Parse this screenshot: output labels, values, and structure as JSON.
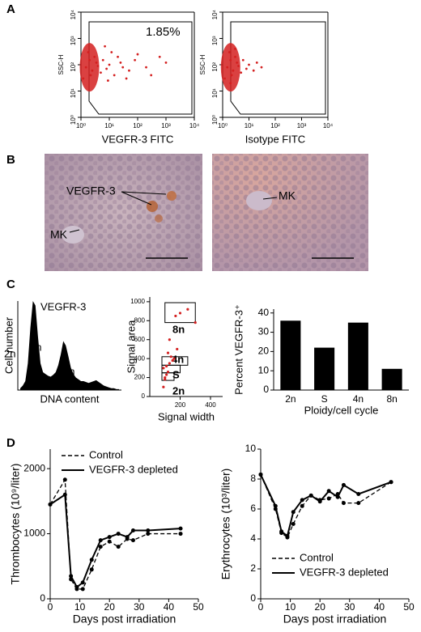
{
  "panel_labels": [
    "A",
    "B",
    "C",
    "D"
  ],
  "micrographs": {
    "labels": [
      "VEGFR-3",
      "MK",
      "MK"
    ]
  },
  "chart_data": [
    {
      "type": "flow",
      "xlabel": "VEGFR-3 FITC",
      "ylabel": "SSC-H",
      "annotations": [
        "1.85%"
      ],
      "color": "#d42020",
      "log": true,
      "xlim": [
        1,
        10000
      ],
      "ylim": [
        1,
        10000
      ],
      "xticks": [
        {
          "value": 1,
          "label": "10⁰"
        },
        {
          "value": 10,
          "label": "10¹"
        },
        {
          "value": 100,
          "label": "10²"
        },
        {
          "value": 1000,
          "label": "10³"
        },
        {
          "value": 10000,
          "label": "10⁴"
        }
      ],
      "yticks": [
        {
          "value": 1,
          "label": "10⁰"
        },
        {
          "value": 10,
          "label": "10¹"
        },
        {
          "value": 100,
          "label": "10²"
        },
        {
          "value": 1000,
          "label": "10³"
        },
        {
          "value": 10000,
          "label": "10⁴"
        }
      ],
      "x": [
        1.2,
        1.5,
        2,
        2.5,
        3,
        1.8,
        2.2,
        3.5,
        4,
        5,
        6,
        8,
        10,
        15,
        20,
        30,
        12,
        25,
        50,
        80,
        100,
        200,
        300,
        600,
        1000,
        40,
        7,
        9
      ],
      "y": [
        30,
        80,
        150,
        60,
        200,
        300,
        40,
        120,
        90,
        50,
        150,
        70,
        100,
        40,
        200,
        80,
        300,
        120,
        60,
        150,
        250,
        80,
        40,
        200,
        120,
        30,
        500,
        25
      ]
    },
    {
      "type": "flow",
      "xlabel": "Isotype FITC",
      "ylabel": "SSC-H",
      "annotations": [],
      "color": "#d42020",
      "log": true,
      "xlim": [
        1,
        10000
      ],
      "ylim": [
        1,
        10000
      ],
      "xticks": [
        {
          "value": 1,
          "label": "10⁰"
        },
        {
          "value": 10,
          "label": "10¹"
        },
        {
          "value": 100,
          "label": "10²"
        },
        {
          "value": 1000,
          "label": "10³"
        },
        {
          "value": 10000,
          "label": "10⁴"
        }
      ],
      "yticks": [
        {
          "value": 1,
          "label": "10⁰"
        },
        {
          "value": 10,
          "label": "10¹"
        },
        {
          "value": 100,
          "label": "10²"
        },
        {
          "value": 1000,
          "label": "10³"
        },
        {
          "value": 10000,
          "label": "10⁴"
        }
      ],
      "x": [
        1.2,
        1.5,
        2,
        2.5,
        3,
        1.8,
        2.2,
        3.5,
        4,
        5,
        6,
        8,
        10,
        15,
        20,
        3,
        2,
        30
      ],
      "y": [
        30,
        80,
        150,
        60,
        200,
        300,
        40,
        120,
        90,
        50,
        150,
        70,
        100,
        60,
        120,
        400,
        20,
        80
      ]
    },
    {
      "type": "histogram",
      "xlabel": "DNA content",
      "ylabel": "Cell number",
      "annotations": [
        "VEGFR-3",
        "2n",
        "4n",
        "8n"
      ],
      "color": "#000000",
      "values": [
        2,
        5,
        10,
        30,
        70,
        100,
        95,
        60,
        30,
        20,
        18,
        16,
        15,
        17,
        20,
        28,
        40,
        55,
        50,
        38,
        25,
        18,
        14,
        12,
        10,
        10,
        9,
        8,
        9,
        10,
        11,
        9,
        7,
        5,
        4,
        3,
        2,
        2,
        1,
        1
      ]
    },
    {
      "type": "scatter",
      "xlabel": "Signal width",
      "ylabel": "Signal area",
      "annotations": [
        "8n",
        "4n",
        "S",
        "2n"
      ],
      "color": "#d42020",
      "xlim": [
        0,
        480
      ],
      "ylim": [
        0,
        1050
      ],
      "xticks": [
        200,
        400
      ],
      "yticks": [
        0,
        200,
        400,
        600,
        800,
        1000
      ],
      "x": [
        100,
        110,
        120,
        90,
        130,
        150,
        140,
        160,
        120,
        110,
        100,
        170,
        200,
        250,
        300,
        180,
        90,
        130
      ],
      "y": [
        200,
        230,
        260,
        300,
        350,
        380,
        420,
        400,
        460,
        320,
        180,
        850,
        880,
        920,
        780,
        500,
        100,
        600
      ]
    },
    {
      "type": "bar",
      "xlabel": "Ploidy/cell cycle",
      "ylabel": "Percent VEGFR-3⁺",
      "annotations": [],
      "color": "#000000",
      "categories": [
        "2n",
        "S",
        "4n",
        "8n"
      ],
      "values": [
        36,
        22,
        35,
        11
      ],
      "ylim": [
        0,
        42
      ],
      "yticks": [
        0,
        10,
        20,
        30,
        40
      ]
    },
    {
      "type": "line",
      "xlabel": "Days post irradiation",
      "ylabel": "Thrombocytes (10⁹/liter)",
      "annotations": [],
      "legend": "upper",
      "xlim": [
        0,
        50
      ],
      "ylim": [
        0,
        2300
      ],
      "xticks": [
        0,
        10,
        20,
        30,
        40,
        50
      ],
      "yticks": [
        0,
        1000,
        2000
      ],
      "x": [
        0,
        5,
        7,
        9,
        11,
        14,
        17,
        20,
        23,
        26,
        28,
        33,
        44
      ],
      "series": [
        {
          "name": "Control",
          "color": "#000000",
          "dash": true,
          "values": [
            1450,
            1830,
            300,
            150,
            150,
            450,
            800,
            880,
            800,
            920,
            900,
            1000,
            1000
          ]
        },
        {
          "name": "VEGFR-3 depleted",
          "color": "#000000",
          "dash": false,
          "values": [
            1450,
            1600,
            350,
            180,
            250,
            600,
            900,
            950,
            1000,
            950,
            1050,
            1050,
            1080
          ]
        }
      ]
    },
    {
      "type": "line",
      "xlabel": "Days post irradiation",
      "ylabel": "Erythrocytes (10³/liter)",
      "annotations": [],
      "legend": "lower",
      "xlim": [
        0,
        50
      ],
      "ylim": [
        0,
        10
      ],
      "xticks": [
        0,
        10,
        20,
        30,
        40,
        50
      ],
      "yticks": [
        0,
        2,
        4,
        6,
        8,
        10
      ],
      "x": [
        0,
        5,
        7,
        9,
        11,
        14,
        17,
        20,
        23,
        26,
        28,
        33,
        44
      ],
      "series": [
        {
          "name": "Control",
          "color": "#000000",
          "dash": true,
          "values": [
            8.3,
            6,
            4.4,
            4.1,
            5,
            6.2,
            6.9,
            6.6,
            6.7,
            7,
            6.4,
            6.4,
            7.8
          ]
        },
        {
          "name": "VEGFR-3 depleted",
          "color": "#000000",
          "dash": false,
          "values": [
            8.3,
            6.2,
            4.5,
            4.2,
            5.8,
            6.6,
            6.9,
            6.5,
            7.2,
            6.8,
            7.6,
            7.0,
            7.8
          ]
        }
      ]
    }
  ]
}
